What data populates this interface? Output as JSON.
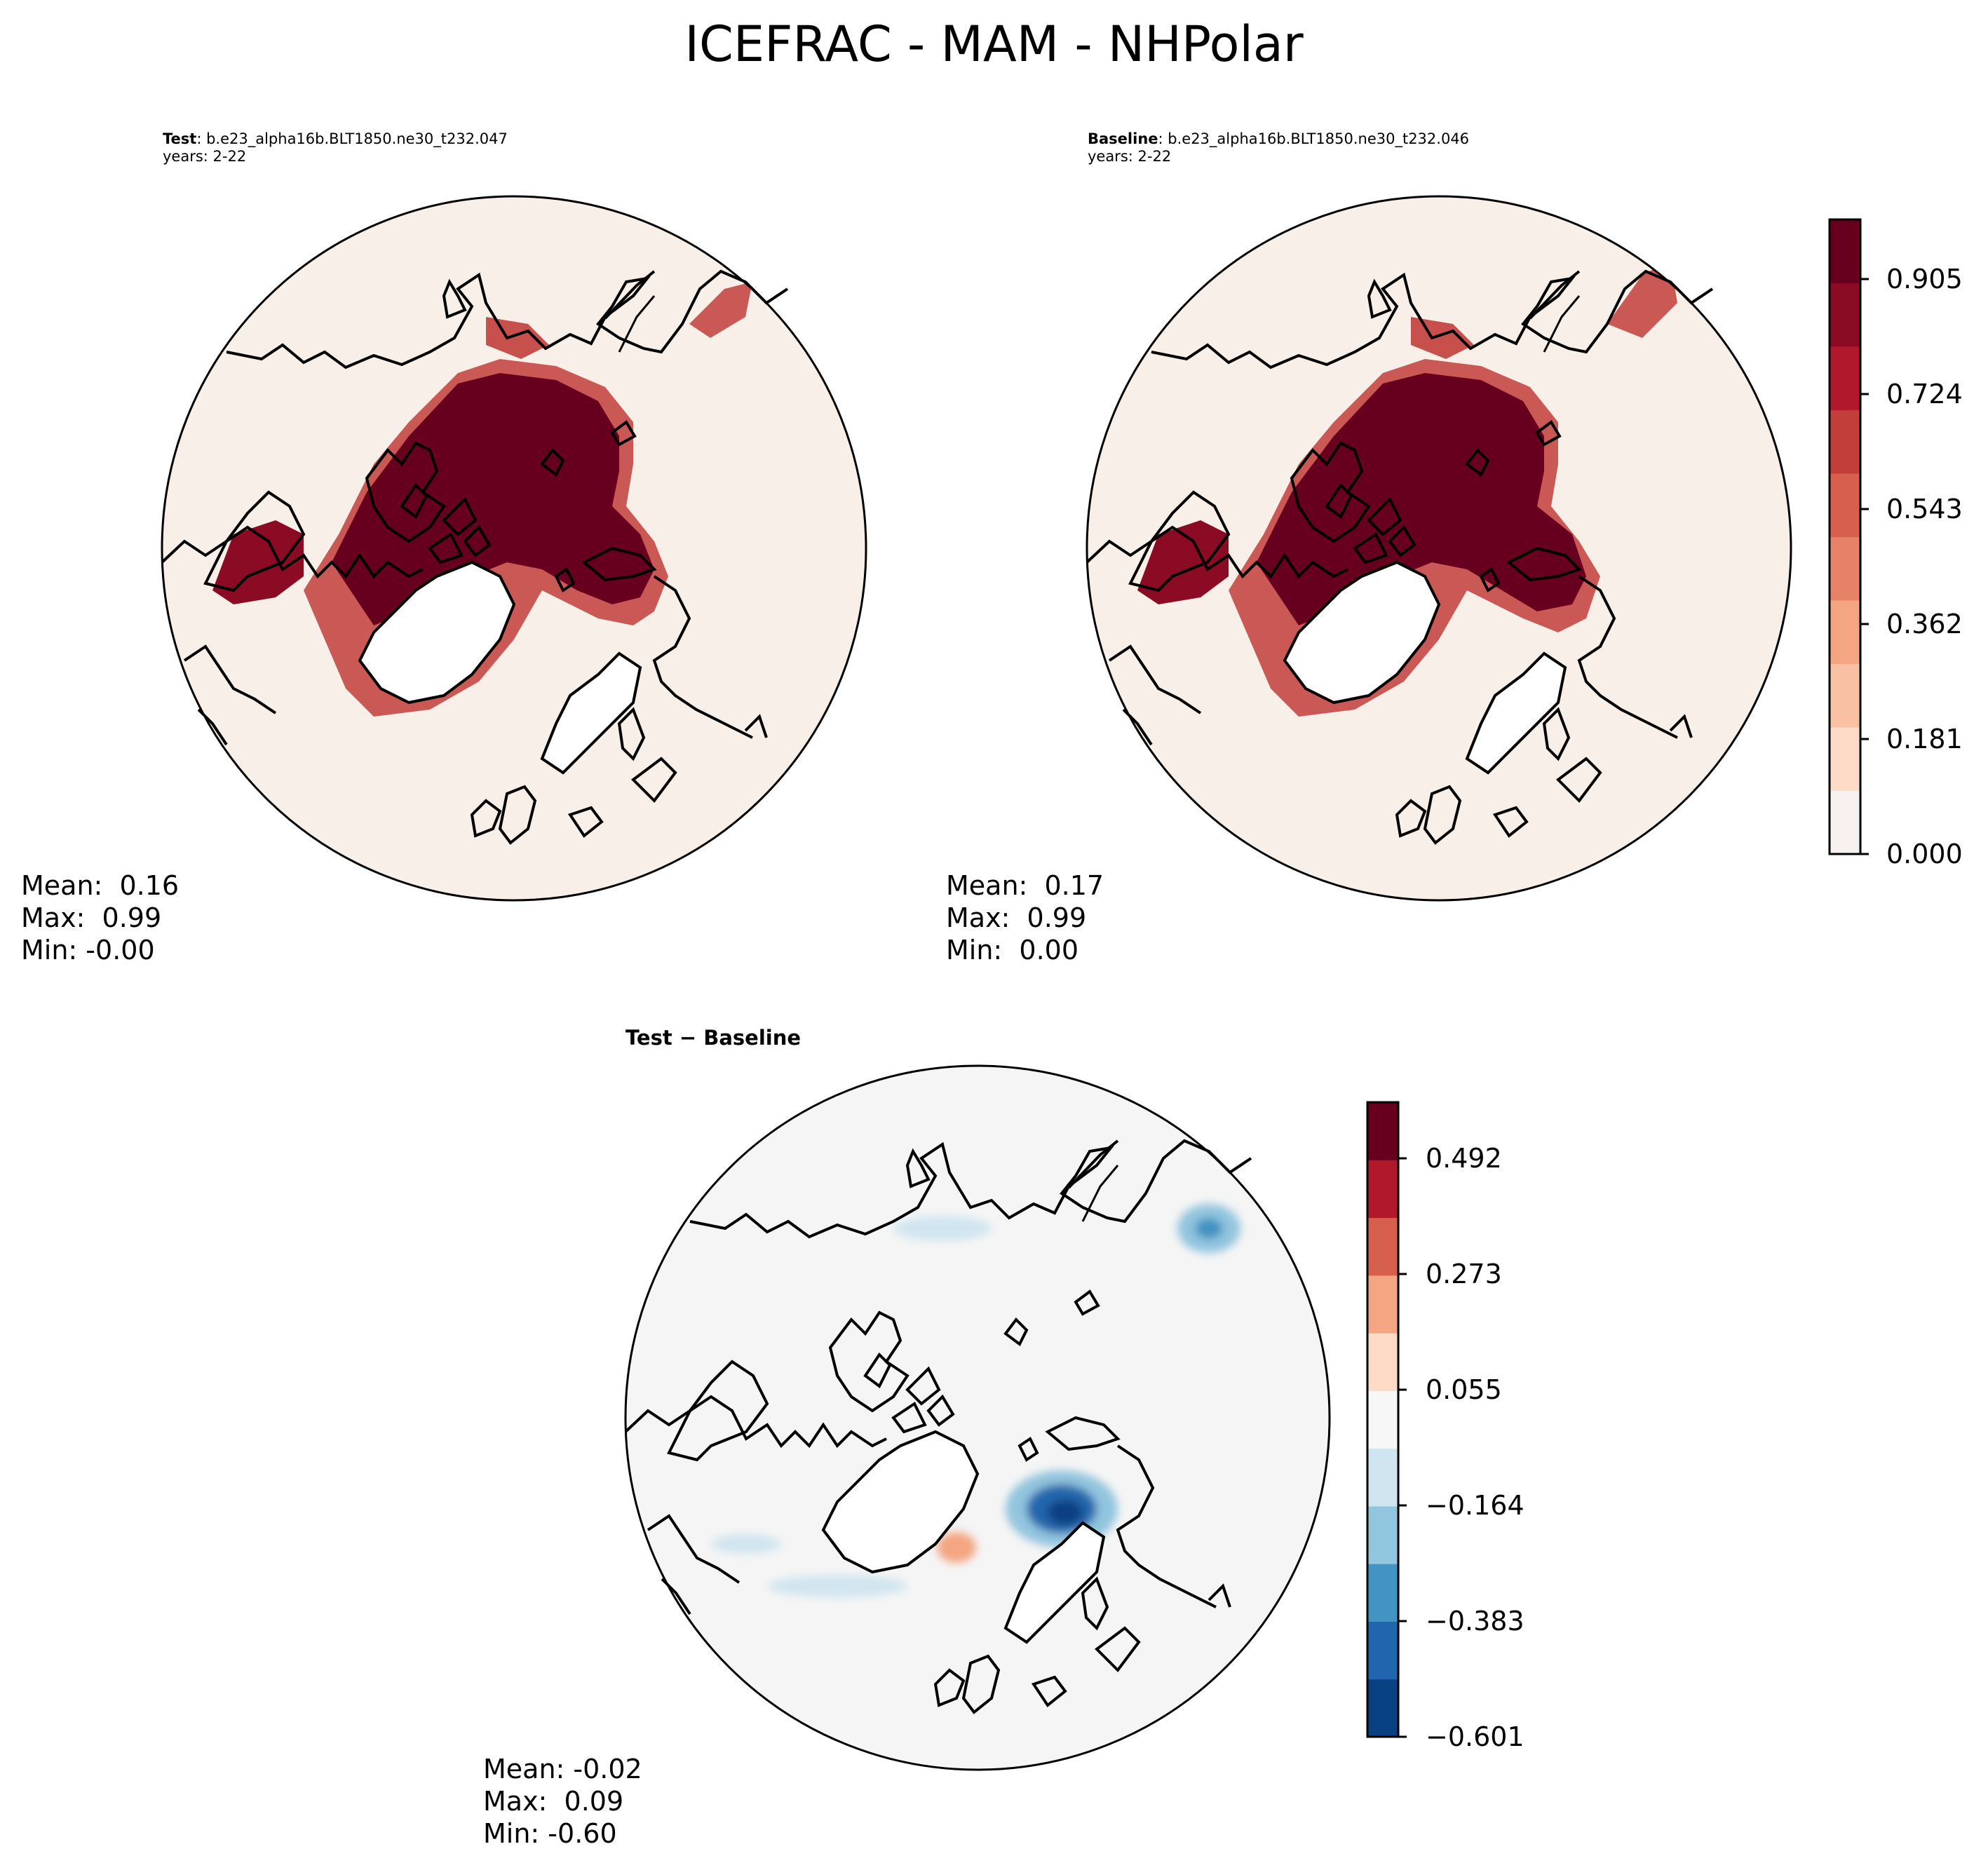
{
  "figure": {
    "title": "ICEFRAC - MAM - NHPolar"
  },
  "panels": {
    "test": {
      "label_bold": "Test",
      "label_rest": ": b.e23_alpha16b.BLT1850.ne30_t232.047",
      "years": "years: 2-22",
      "stats": {
        "mean": "Mean:  0.16",
        "max": "Max:  0.99",
        "min": "Min: -0.00"
      }
    },
    "baseline": {
      "label_bold": "Baseline",
      "label_rest": ": b.e23_alpha16b.BLT1850.ne30_t232.046",
      "years": "years: 2-22",
      "stats": {
        "mean": "Mean:  0.17",
        "max": "Max:  0.99",
        "min": "Min:  0.00"
      }
    },
    "diff": {
      "label": "Test − Baseline",
      "stats": {
        "mean": "Mean: -0.02",
        "max": "Max:  0.09",
        "min": "Min: -0.60"
      }
    }
  },
  "colorbars": {
    "main": {
      "ticks": [
        "0.000",
        "0.181",
        "0.362",
        "0.543",
        "0.724",
        "0.905"
      ],
      "colors": [
        "#f7f2ef",
        "#fddbc7",
        "#f9c0a3",
        "#f4a582",
        "#e58267",
        "#d6604d",
        "#c23e3b",
        "#b2182b",
        "#8b0a24",
        "#67001f"
      ]
    },
    "diff": {
      "ticks": [
        "−0.601",
        "−0.383",
        "−0.164",
        "0.055",
        "0.273",
        "0.492"
      ],
      "colors": [
        "#084081",
        "#2166ac",
        "#4393c3",
        "#92c5de",
        "#d1e5f0",
        "#f7f7f7",
        "#fddbc7",
        "#f4a582",
        "#d6604d",
        "#b2182b",
        "#67001f"
      ]
    }
  }
}
